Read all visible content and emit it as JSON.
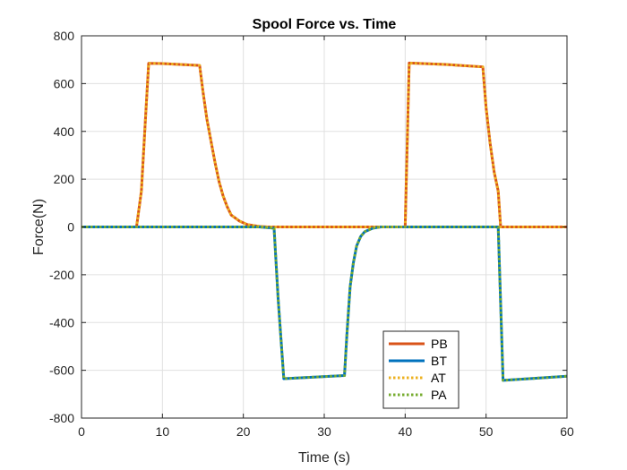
{
  "chart_data": {
    "type": "line",
    "title": "Spool Force vs. Time",
    "xlabel": "Time (s)",
    "ylabel": "Force(N)",
    "xlim": [
      0,
      60
    ],
    "ylim": [
      -800,
      800
    ],
    "xticks": [
      0,
      10,
      20,
      30,
      40,
      50,
      60
    ],
    "yticks": [
      -800,
      -600,
      -400,
      -200,
      0,
      200,
      400,
      600,
      800
    ],
    "grid": true,
    "legend_position": "bottom-center",
    "series": [
      {
        "name": "PB",
        "color": "#D95319",
        "dash": "solid",
        "points": [
          [
            0,
            0
          ],
          [
            6.8,
            0
          ],
          [
            7.4,
            150
          ],
          [
            7.9,
            450
          ],
          [
            8.3,
            685
          ],
          [
            10,
            684
          ],
          [
            14.6,
            676
          ],
          [
            15,
            570
          ],
          [
            15.5,
            450
          ],
          [
            16,
            360
          ],
          [
            16.5,
            270
          ],
          [
            17,
            190
          ],
          [
            17.5,
            130
          ],
          [
            18,
            85
          ],
          [
            18.5,
            50
          ],
          [
            19.5,
            25
          ],
          [
            20.5,
            10
          ],
          [
            22,
            2
          ],
          [
            23,
            0
          ],
          [
            40,
            0
          ],
          [
            40.5,
            686
          ],
          [
            45,
            680
          ],
          [
            49.6,
            670
          ],
          [
            50,
            500
          ],
          [
            50.5,
            350
          ],
          [
            51,
            230
          ],
          [
            51.5,
            150
          ],
          [
            51.8,
            0
          ],
          [
            60,
            0
          ]
        ]
      },
      {
        "name": "BT",
        "color": "#0072BD",
        "dash": "solid",
        "points": [
          [
            0,
            0
          ],
          [
            22,
            0
          ],
          [
            23.8,
            -5
          ],
          [
            24.3,
            -300
          ],
          [
            25,
            -635
          ],
          [
            32.5,
            -622
          ],
          [
            32.8,
            -450
          ],
          [
            33.2,
            -250
          ],
          [
            33.6,
            -150
          ],
          [
            34,
            -80
          ],
          [
            34.5,
            -40
          ],
          [
            35,
            -20
          ],
          [
            36,
            -5
          ],
          [
            37,
            0
          ],
          [
            51.5,
            0
          ],
          [
            51.8,
            -320
          ],
          [
            52.1,
            -642
          ],
          [
            60,
            -625
          ]
        ]
      },
      {
        "name": "AT",
        "color": "#EDB120",
        "dash": "dotted",
        "points": [
          [
            0,
            0
          ],
          [
            6.8,
            0
          ],
          [
            7.4,
            150
          ],
          [
            7.9,
            450
          ],
          [
            8.3,
            685
          ],
          [
            10,
            684
          ],
          [
            14.6,
            676
          ],
          [
            15,
            570
          ],
          [
            15.5,
            450
          ],
          [
            16,
            360
          ],
          [
            16.5,
            270
          ],
          [
            17,
            190
          ],
          [
            17.5,
            130
          ],
          [
            18,
            85
          ],
          [
            18.5,
            50
          ],
          [
            19.5,
            25
          ],
          [
            20.5,
            10
          ],
          [
            22,
            2
          ],
          [
            23,
            0
          ],
          [
            40,
            0
          ],
          [
            40.5,
            686
          ],
          [
            45,
            680
          ],
          [
            49.6,
            670
          ],
          [
            50,
            500
          ],
          [
            50.5,
            350
          ],
          [
            51,
            230
          ],
          [
            51.5,
            150
          ],
          [
            51.8,
            0
          ],
          [
            60,
            0
          ]
        ]
      },
      {
        "name": "PA",
        "color": "#77AC30",
        "dash": "dotted",
        "points": [
          [
            0,
            0
          ],
          [
            22,
            0
          ],
          [
            23.8,
            -5
          ],
          [
            24.3,
            -300
          ],
          [
            25,
            -635
          ],
          [
            32.5,
            -622
          ],
          [
            32.8,
            -450
          ],
          [
            33.2,
            -250
          ],
          [
            33.6,
            -150
          ],
          [
            34,
            -80
          ],
          [
            34.5,
            -40
          ],
          [
            35,
            -20
          ],
          [
            36,
            -5
          ],
          [
            37,
            0
          ],
          [
            51.5,
            0
          ],
          [
            51.8,
            -320
          ],
          [
            52.1,
            -642
          ],
          [
            60,
            -625
          ]
        ]
      }
    ]
  }
}
